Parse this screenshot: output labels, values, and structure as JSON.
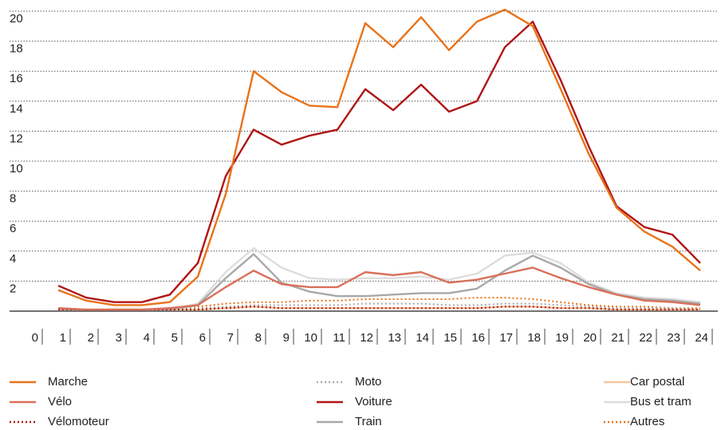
{
  "chart_data": {
    "type": "line",
    "x": [
      1,
      2,
      3,
      4,
      5,
      6,
      7,
      8,
      9,
      10,
      11,
      12,
      13,
      14,
      15,
      16,
      17,
      18,
      19,
      20,
      21,
      22,
      23,
      24
    ],
    "xlim": [
      0,
      24
    ],
    "xticks": [
      0,
      1,
      2,
      3,
      4,
      5,
      6,
      7,
      8,
      9,
      10,
      11,
      12,
      13,
      14,
      15,
      16,
      17,
      18,
      19,
      20,
      21,
      22,
      23,
      24
    ],
    "ylim": [
      0,
      20
    ],
    "yticks": [
      2,
      4,
      6,
      8,
      10,
      12,
      14,
      16,
      18,
      20
    ],
    "grid": true,
    "series": [
      {
        "name": "Marche",
        "color": "#e8731a",
        "style": "solid",
        "values": [
          1.4,
          0.7,
          0.4,
          0.4,
          0.6,
          2.3,
          7.8,
          16,
          14.6,
          13.7,
          13.6,
          19.2,
          17.6,
          19.6,
          17.4,
          19.3,
          20.1,
          19,
          14.8,
          10.5,
          6.9,
          5.3,
          4.3,
          2.7
        ]
      },
      {
        "name": "Vélo",
        "color": "#d9705a",
        "style": "solid",
        "values": [
          0.2,
          0.1,
          0.1,
          0.1,
          0.2,
          0.4,
          1.6,
          2.7,
          1.8,
          1.6,
          1.6,
          2.6,
          2.4,
          2.6,
          1.9,
          2.1,
          2.5,
          2.9,
          2.2,
          1.6,
          1.1,
          0.7,
          0.6,
          0.4
        ]
      },
      {
        "name": "Vélomoteur",
        "color": "#b01a1a",
        "style": "dotted",
        "values": [
          0.1,
          0.1,
          0.1,
          0.1,
          0.1,
          0.1,
          0.2,
          0.3,
          0.2,
          0.2,
          0.2,
          0.2,
          0.2,
          0.2,
          0.2,
          0.2,
          0.3,
          0.3,
          0.2,
          0.2,
          0.1,
          0.1,
          0.1,
          0.1
        ]
      },
      {
        "name": "Moto",
        "color": "#aaaaaa",
        "style": "dotted",
        "values": [
          0.1,
          0.1,
          0.1,
          0.1,
          0.1,
          0.2,
          0.3,
          0.4,
          0.4,
          0.4,
          0.4,
          0.5,
          0.5,
          0.5,
          0.4,
          0.4,
          0.5,
          0.5,
          0.4,
          0.3,
          0.2,
          0.2,
          0.2,
          0.1
        ]
      },
      {
        "name": "Voiture",
        "color": "#b01515",
        "style": "solid",
        "values": [
          1.7,
          0.9,
          0.6,
          0.6,
          1.1,
          3.2,
          9,
          12.1,
          11.1,
          11.7,
          12.1,
          14.8,
          13.4,
          15.1,
          13.3,
          14,
          17.6,
          19.3,
          15.4,
          11,
          7,
          5.6,
          5.1,
          3.2
        ]
      },
      {
        "name": "Train",
        "color": "#a8a8a8",
        "style": "solid",
        "values": [
          0.1,
          0.1,
          0.1,
          0.1,
          0.1,
          0.4,
          2.2,
          3.8,
          1.9,
          1.3,
          1,
          1,
          1.1,
          1.2,
          1.2,
          1.5,
          2.7,
          3.7,
          2.9,
          1.8,
          1.1,
          0.8,
          0.7,
          0.5
        ]
      },
      {
        "name": "Car postal",
        "color": "#f5c6a0",
        "style": "solid",
        "values": [
          0.1,
          0.1,
          0.1,
          0.1,
          0.1,
          0.1,
          0.2,
          0.3,
          0.2,
          0.2,
          0.2,
          0.2,
          0.2,
          0.2,
          0.2,
          0.2,
          0.3,
          0.3,
          0.2,
          0.2,
          0.1,
          0.1,
          0.1,
          0.1
        ]
      },
      {
        "name": "Bus et tram",
        "color": "#dddddd",
        "style": "solid",
        "values": [
          0.2,
          0.1,
          0.1,
          0.1,
          0.1,
          0.5,
          2.6,
          4.2,
          2.9,
          2.2,
          2.1,
          2.2,
          2.2,
          2.3,
          2.1,
          2.5,
          3.7,
          3.9,
          3.2,
          1.9,
          1.2,
          0.9,
          0.8,
          0.6
        ]
      },
      {
        "name": "Autres",
        "color": "#e8731a",
        "style": "dotted",
        "values": [
          0.2,
          0.1,
          0.1,
          0.1,
          0.2,
          0.3,
          0.5,
          0.6,
          0.6,
          0.7,
          0.7,
          0.8,
          0.8,
          0.8,
          0.8,
          0.9,
          0.9,
          0.8,
          0.6,
          0.4,
          0.3,
          0.3,
          0.2,
          0.2
        ]
      }
    ]
  }
}
